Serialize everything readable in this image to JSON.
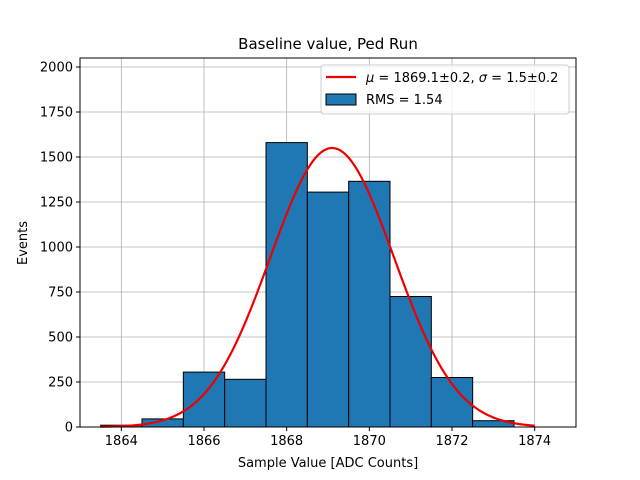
{
  "chart_data": {
    "type": "bar",
    "title": "Baseline value, Ped Run",
    "xlabel": "Sample Value [ADC Counts]",
    "ylabel": "Events",
    "xlim": [
      1863,
      1875
    ],
    "ylim": [
      0,
      2050
    ],
    "grid": true,
    "x_ticks": [
      1864,
      1866,
      1868,
      1870,
      1872,
      1874
    ],
    "y_ticks": [
      0,
      250,
      500,
      750,
      1000,
      1250,
      1500,
      1750,
      2000
    ],
    "histogram": {
      "name": "RMS = 1.54",
      "color": "#1f77b4",
      "edge_color": "#000000",
      "bin_edges": [
        1863.5,
        1864.5,
        1865.5,
        1866.5,
        1867.5,
        1868.5,
        1869.5,
        1870.5,
        1871.5,
        1872.5,
        1873.5
      ],
      "counts": [
        10,
        45,
        305,
        265,
        1580,
        1305,
        1365,
        725,
        275,
        35
      ]
    },
    "fit": {
      "name": "μ = 1869.1±0.2, σ = 1.5±0.2",
      "mu_symbol": "μ",
      "mu_value": "1869.1±0.2",
      "sigma_symbol": "σ",
      "sigma_value": "1.5±0.2",
      "color": "#ee0000",
      "mu": 1869.1,
      "sigma": 1.5,
      "amplitude": 1550,
      "x_range": [
        1863.5,
        1874.0
      ]
    },
    "legend": {
      "placement": "top-right",
      "entries": [
        "μ = 1869.1±0.2, σ = 1.5±0.2",
        "RMS = 1.54"
      ]
    }
  }
}
